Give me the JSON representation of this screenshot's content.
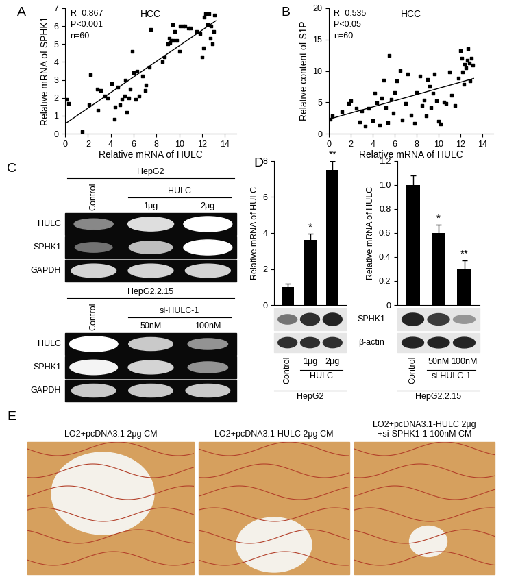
{
  "chart_data": [
    {
      "panel": "A",
      "type": "scatter",
      "title": "HCC",
      "annotations": [
        "R=0.867",
        "P<0.001",
        "n=60"
      ],
      "x_label": "Relative mRNA of HULC",
      "y_label": "Relative mRNA of SPHK1",
      "color": "#000000",
      "marker": "s",
      "x": [
        0.1,
        0.3,
        1.5,
        2.1,
        2.2,
        2.8,
        2.9,
        3.1,
        3.5,
        3.7,
        4.1,
        4.3,
        4.4,
        4.6,
        4.8,
        5.0,
        5.2,
        5.3,
        5.4,
        5.6,
        5.7,
        5.9,
        6.0,
        6.2,
        6.3,
        6.5,
        6.8,
        7.0,
        7.1,
        7.4,
        7.5,
        8.5,
        8.7,
        9.0,
        9.1,
        9.2,
        9.3,
        9.4,
        9.5,
        9.6,
        9.8,
        10.0,
        10.1,
        10.3,
        10.5,
        10.8,
        11.0,
        11.5,
        11.8,
        12.0,
        12.1,
        12.2,
        12.3,
        12.5,
        12.6,
        12.7,
        12.8,
        12.9,
        13.0,
        13.1
      ],
      "values": [
        1.9,
        1.7,
        0.1,
        1.6,
        3.3,
        2.5,
        1.3,
        2.4,
        2.1,
        2.0,
        2.8,
        0.8,
        1.5,
        2.6,
        1.6,
        1.9,
        2.1,
        3.0,
        1.2,
        2.0,
        2.5,
        4.6,
        3.4,
        1.9,
        3.5,
        2.1,
        3.2,
        2.4,
        2.7,
        3.7,
        5.8,
        4.0,
        4.3,
        5.0,
        5.3,
        5.1,
        5.2,
        6.1,
        5.2,
        5.7,
        5.2,
        4.6,
        6.0,
        6.0,
        6.0,
        5.9,
        5.9,
        5.7,
        5.6,
        4.3,
        4.8,
        6.5,
        6.7,
        6.1,
        6.7,
        5.3,
        6.0,
        5.0,
        5.7,
        6.6
      ],
      "fit_line": {
        "x": [
          0,
          13.2
        ],
        "y": [
          0.55,
          6.3
        ]
      },
      "xlim": [
        0,
        15
      ],
      "xticks": [
        0,
        2,
        4,
        6,
        8,
        10,
        12,
        14
      ],
      "ylim": [
        0,
        7
      ],
      "yticks": [
        0,
        1,
        2,
        3,
        4,
        5,
        6,
        7
      ]
    },
    {
      "panel": "B",
      "type": "scatter",
      "title": "HCC",
      "annotations": [
        "R=0.535",
        "P<0.05",
        "n=60"
      ],
      "x_label": "Relative mRNA of HULC",
      "y_label": "Relative content of S1P",
      "color": "#000000",
      "marker": "s",
      "x": [
        0.1,
        0.3,
        1.2,
        1.8,
        2.0,
        2.5,
        2.8,
        3.0,
        3.3,
        3.6,
        4.0,
        4.2,
        4.4,
        4.6,
        4.8,
        5.0,
        5.2,
        5.4,
        5.5,
        5.7,
        5.9,
        6.0,
        6.2,
        6.5,
        6.7,
        7.0,
        7.2,
        7.5,
        7.8,
        8.0,
        8.3,
        8.5,
        8.7,
        8.9,
        9.0,
        9.2,
        9.3,
        9.5,
        9.6,
        9.8,
        10.0,
        10.2,
        10.5,
        10.7,
        11.0,
        11.2,
        11.5,
        11.8,
        12.0,
        12.1,
        12.2,
        12.3,
        12.4,
        12.5,
        12.6,
        12.7,
        12.8,
        13.0,
        13.1,
        12.9
      ],
      "values": [
        2.3,
        2.8,
        3.5,
        4.8,
        5.2,
        4.0,
        1.9,
        3.6,
        1.2,
        4.0,
        2.1,
        6.5,
        4.9,
        1.3,
        5.7,
        8.5,
        4.2,
        1.8,
        12.5,
        5.5,
        3.3,
        6.6,
        8.4,
        10.1,
        2.2,
        4.8,
        9.5,
        3.0,
        1.6,
        6.6,
        9.2,
        4.5,
        5.4,
        2.8,
        8.6,
        7.5,
        4.2,
        6.4,
        9.5,
        5.3,
        2.0,
        1.5,
        5.0,
        4.8,
        9.8,
        6.1,
        4.5,
        8.8,
        13.2,
        12.0,
        9.8,
        7.9,
        11.0,
        10.5,
        11.7,
        13.5,
        11.3,
        12.0,
        10.9,
        8.4
      ],
      "fit_line": {
        "x": [
          0,
          13.2
        ],
        "y": [
          2.3,
          8.8
        ]
      },
      "xlim": [
        0,
        15
      ],
      "xticks": [
        0,
        2,
        4,
        6,
        8,
        10,
        12,
        14
      ],
      "ylim": [
        0,
        20
      ],
      "yticks": [
        0,
        5,
        10,
        15,
        20
      ]
    },
    {
      "panel": "D",
      "type": "bar",
      "y_label": "Relative mRNA of HULC",
      "categories": [
        "Control",
        "1μg",
        "2μg"
      ],
      "group_label": "HULC",
      "cell_line": "HepG2",
      "values": [
        1.0,
        3.6,
        7.5
      ],
      "errors": [
        0.2,
        0.35,
        0.5
      ],
      "significance": [
        null,
        "*",
        "**"
      ],
      "color": "#000000",
      "ylim": [
        0,
        8
      ],
      "yticks": [
        0,
        2,
        4,
        6,
        8
      ]
    },
    {
      "type": "bar",
      "y_label": "Relative mRNA of HULC",
      "categories": [
        "Control",
        "50nM",
        "100nM"
      ],
      "group_label": "si-HULC-1",
      "cell_line": "HepG2.2.15",
      "values": [
        1.0,
        0.6,
        0.3
      ],
      "errors": [
        0.08,
        0.07,
        0.07
      ],
      "significance": [
        null,
        "*",
        "**"
      ],
      "color": "#000000",
      "ylim": [
        0,
        1.2
      ],
      "yticks": [
        0,
        0.2,
        0.4,
        0.6,
        0.8,
        1.0,
        1.2
      ]
    }
  ],
  "gels": {
    "panel": "C",
    "blocks": [
      {
        "cell_line": "HepG2",
        "treatment": "HULC",
        "lanes": [
          "Control",
          "1μg",
          "2μg"
        ],
        "rows": [
          {
            "label": "HULC",
            "intensity": [
              0.45,
              0.85,
              1.0
            ]
          },
          {
            "label": "SPHK1",
            "intensity": [
              0.35,
              0.7,
              1.0
            ]
          },
          {
            "label": "GAPDH",
            "intensity": [
              0.8,
              0.8,
              0.8
            ]
          }
        ]
      },
      {
        "cell_line": "HepG2.2.15",
        "treatment": "si-HULC-1",
        "lanes": [
          "Control",
          "50nM",
          "100nM"
        ],
        "rows": [
          {
            "label": "HULC",
            "intensity": [
              1.0,
              0.75,
              0.5
            ]
          },
          {
            "label": "SPHK1",
            "intensity": [
              0.95,
              0.8,
              0.5
            ]
          },
          {
            "label": "GAPDH",
            "intensity": [
              0.75,
              0.75,
              0.75
            ]
          }
        ]
      }
    ]
  },
  "blots": {
    "row_labels": [
      "SPHK1",
      "β-actin"
    ],
    "intensity": [
      [
        [
          0.55,
          0.85,
          0.9
        ],
        [
          0.85,
          0.85,
          0.85
        ]
      ],
      [
        [
          0.9,
          0.8,
          0.4
        ],
        [
          0.9,
          0.9,
          0.9
        ]
      ]
    ]
  },
  "photos": {
    "panel": "E",
    "titles": [
      "LO2+pcDNA3.1 2μg CM",
      "LO2+pcDNA3.1-HULC 2μg CM",
      "LO2+pcDNA3.1-HULC 2μg\n+si-SPHK1-1 100nM CM"
    ]
  }
}
